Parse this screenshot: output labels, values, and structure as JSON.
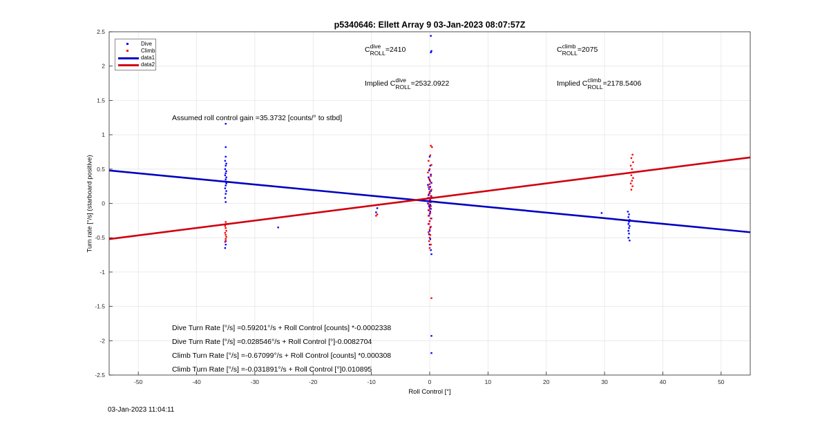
{
  "chart_data": {
    "type": "scatter",
    "title": "p5340646: Ellett Array 9 03-Jan-2023 08:07:57Z",
    "xlabel": "Roll Control [°]",
    "ylabel": "Turn rate [°/s] (starboard positive)",
    "xlim": [
      -55,
      55
    ],
    "ylim": [
      -2.5,
      2.5
    ],
    "xticks": [
      -50,
      -40,
      -30,
      -20,
      -10,
      0,
      10,
      20,
      30,
      40,
      50
    ],
    "yticks": [
      -2.5,
      -2,
      -1.5,
      -1,
      -0.5,
      0,
      0.5,
      1,
      1.5,
      2,
      2.5
    ],
    "ytick_labels": [
      "-2.5",
      "-2",
      "-1.5",
      "-1",
      "-0.5",
      "0",
      "0.5",
      "1",
      "1.5",
      "2",
      "2.5"
    ],
    "grid": true,
    "legend_position": "top-left",
    "legend": [
      "Dive",
      "Climb",
      "data1",
      "data2"
    ],
    "series": [
      {
        "name": "Dive",
        "kind": "points",
        "color": "#0000ff",
        "points": [
          [
            -35,
            1.16
          ],
          [
            -35,
            0.82
          ],
          [
            -35,
            0.68
          ],
          [
            -35.1,
            0.62
          ],
          [
            -34.9,
            0.58
          ],
          [
            -35,
            0.55
          ],
          [
            -35.1,
            0.5
          ],
          [
            -34.9,
            0.47
          ],
          [
            -35,
            0.44
          ],
          [
            -35.1,
            0.41
          ],
          [
            -34.9,
            0.38
          ],
          [
            -35,
            0.35
          ],
          [
            -35.1,
            0.32
          ],
          [
            -34.9,
            0.29
          ],
          [
            -35,
            0.26
          ],
          [
            -35.1,
            0.22
          ],
          [
            -34.9,
            0.18
          ],
          [
            -35,
            0.14
          ],
          [
            -35.1,
            0.08
          ],
          [
            -35,
            0.02
          ],
          [
            -35,
            -0.55
          ],
          [
            -35,
            -0.6
          ],
          [
            -35.1,
            -0.65
          ],
          [
            -26,
            -0.35
          ],
          [
            -9,
            -0.07
          ],
          [
            -9.2,
            -0.13
          ],
          [
            0.2,
            2.44
          ],
          [
            0.3,
            2.22
          ],
          [
            0.2,
            2.2
          ],
          [
            0,
            0.68
          ],
          [
            0.1,
            0.55
          ],
          [
            -0.1,
            0.48
          ],
          [
            0.2,
            0.42
          ],
          [
            -0.2,
            0.38
          ],
          [
            0,
            0.34
          ],
          [
            0.3,
            0.3
          ],
          [
            -0.3,
            0.27
          ],
          [
            0.1,
            0.24
          ],
          [
            -0.1,
            0.21
          ],
          [
            0.2,
            0.18
          ],
          [
            0,
            0.15
          ],
          [
            -0.2,
            0.12
          ],
          [
            0.3,
            0.1
          ],
          [
            -0.1,
            0.08
          ],
          [
            0.1,
            0.06
          ],
          [
            0,
            0.04
          ],
          [
            0.2,
            0.02
          ],
          [
            -0.3,
            0.0
          ],
          [
            0.1,
            -0.02
          ],
          [
            -0.1,
            -0.04
          ],
          [
            0,
            -0.06
          ],
          [
            0.2,
            -0.08
          ],
          [
            -0.2,
            -0.1
          ],
          [
            0.1,
            -0.12
          ],
          [
            0,
            -0.15
          ],
          [
            -0.1,
            -0.18
          ],
          [
            0.2,
            -0.22
          ],
          [
            0,
            -0.26
          ],
          [
            -0.2,
            -0.3
          ],
          [
            0.1,
            -0.35
          ],
          [
            0,
            -0.4
          ],
          [
            -0.1,
            -0.45
          ],
          [
            0.1,
            -0.52
          ],
          [
            0,
            -0.6
          ],
          [
            0.2,
            -0.68
          ],
          [
            0.3,
            -0.74
          ],
          [
            0.3,
            -1.93
          ],
          [
            0.3,
            -2.18
          ],
          [
            29.5,
            -0.14
          ],
          [
            34,
            -0.12
          ],
          [
            34.2,
            -0.16
          ],
          [
            34.1,
            -0.2
          ],
          [
            34.3,
            -0.24
          ],
          [
            34.2,
            -0.27
          ],
          [
            34.1,
            -0.3
          ],
          [
            34.3,
            -0.33
          ],
          [
            34.2,
            -0.36
          ],
          [
            34.1,
            -0.4
          ],
          [
            34.2,
            -0.44
          ],
          [
            34.1,
            -0.5
          ],
          [
            34.3,
            -0.54
          ]
        ]
      },
      {
        "name": "Climb",
        "kind": "points",
        "color": "#ff0000",
        "points": [
          [
            -35,
            -0.27
          ],
          [
            -34.9,
            -0.3
          ],
          [
            -35.1,
            -0.33
          ],
          [
            -35,
            -0.36
          ],
          [
            -34.9,
            -0.4
          ],
          [
            -35.1,
            -0.43
          ],
          [
            -35,
            -0.46
          ],
          [
            -34.9,
            -0.49
          ],
          [
            -35,
            -0.52
          ],
          [
            -35.1,
            -0.56
          ],
          [
            -9,
            -0.16
          ],
          [
            -9.2,
            -0.18
          ],
          [
            0.2,
            0.84
          ],
          [
            0.4,
            0.82
          ],
          [
            0.1,
            0.7
          ],
          [
            -0.2,
            0.62
          ],
          [
            0.3,
            0.56
          ],
          [
            0,
            0.5
          ],
          [
            -0.3,
            0.45
          ],
          [
            0.2,
            0.4
          ],
          [
            -0.1,
            0.36
          ],
          [
            0.1,
            0.32
          ],
          [
            0,
            0.28
          ],
          [
            -0.2,
            0.24
          ],
          [
            0.3,
            0.2
          ],
          [
            0,
            0.17
          ],
          [
            -0.1,
            0.14
          ],
          [
            0.2,
            0.11
          ],
          [
            -0.3,
            0.08
          ],
          [
            0.1,
            0.05
          ],
          [
            0,
            0.02
          ],
          [
            -0.2,
            -0.01
          ],
          [
            0.2,
            -0.04
          ],
          [
            0,
            -0.07
          ],
          [
            -0.1,
            -0.1
          ],
          [
            0.1,
            -0.14
          ],
          [
            -0.2,
            -0.18
          ],
          [
            0.3,
            -0.22
          ],
          [
            0,
            -0.26
          ],
          [
            -0.1,
            -0.3
          ],
          [
            0.2,
            -0.34
          ],
          [
            0,
            -0.38
          ],
          [
            -0.2,
            -0.42
          ],
          [
            0.1,
            -0.46
          ],
          [
            0,
            -0.5
          ],
          [
            -0.1,
            -0.55
          ],
          [
            0.2,
            -0.6
          ],
          [
            0,
            -0.65
          ],
          [
            0.3,
            -1.38
          ],
          [
            34.8,
            0.71
          ],
          [
            34.6,
            0.66
          ],
          [
            34.9,
            0.6
          ],
          [
            34.5,
            0.55
          ],
          [
            34.7,
            0.5
          ],
          [
            34.8,
            0.45
          ],
          [
            34.6,
            0.41
          ],
          [
            34.9,
            0.37
          ],
          [
            34.7,
            0.33
          ],
          [
            34.5,
            0.29
          ],
          [
            34.8,
            0.25
          ],
          [
            34.6,
            0.2
          ]
        ]
      },
      {
        "name": "data1",
        "kind": "line",
        "color": "#0000c0",
        "x": [
          -55,
          55
        ],
        "y": [
          0.48,
          -0.42
        ]
      },
      {
        "name": "data2",
        "kind": "line",
        "color": "#d0000f",
        "x": [
          -55,
          55
        ],
        "y": [
          -0.52,
          0.67
        ]
      }
    ]
  },
  "annotations": {
    "c_roll_dive": {
      "c": "C",
      "sup": "dive",
      "sub": "ROLL",
      "value": "=2410"
    },
    "c_roll_climb": {
      "c": "C",
      "sup": "climb",
      "sub": "ROLL",
      "value": "=2075"
    },
    "implied_dive": {
      "prefix": "Implied ",
      "c": "C",
      "sup": "dive",
      "sub": "ROLL",
      "value": "=2532.0922"
    },
    "implied_climb": {
      "prefix": "Implied ",
      "c": "C",
      "sup": "climb",
      "sub": "ROLL",
      "value": "=2178.5406"
    },
    "gain": "Assumed roll control gain =35.3732 [counts/° to stbd]",
    "fit_lines": [
      "Dive Turn Rate [°/s] =0.59201°/s + Roll Control [counts] *-0.0002338",
      "Dive Turn Rate [°/s] =0.028546°/s + Roll Control [°]-0.0082704",
      "Climb Turn Rate [°/s] =-0.67099°/s + Roll Control [counts] *0.000308",
      "Climb Turn Rate [°/s] =-0.031891°/s + Roll Control [°]0.010895"
    ]
  },
  "timestamp": "03-Jan-2023 11:04:11"
}
